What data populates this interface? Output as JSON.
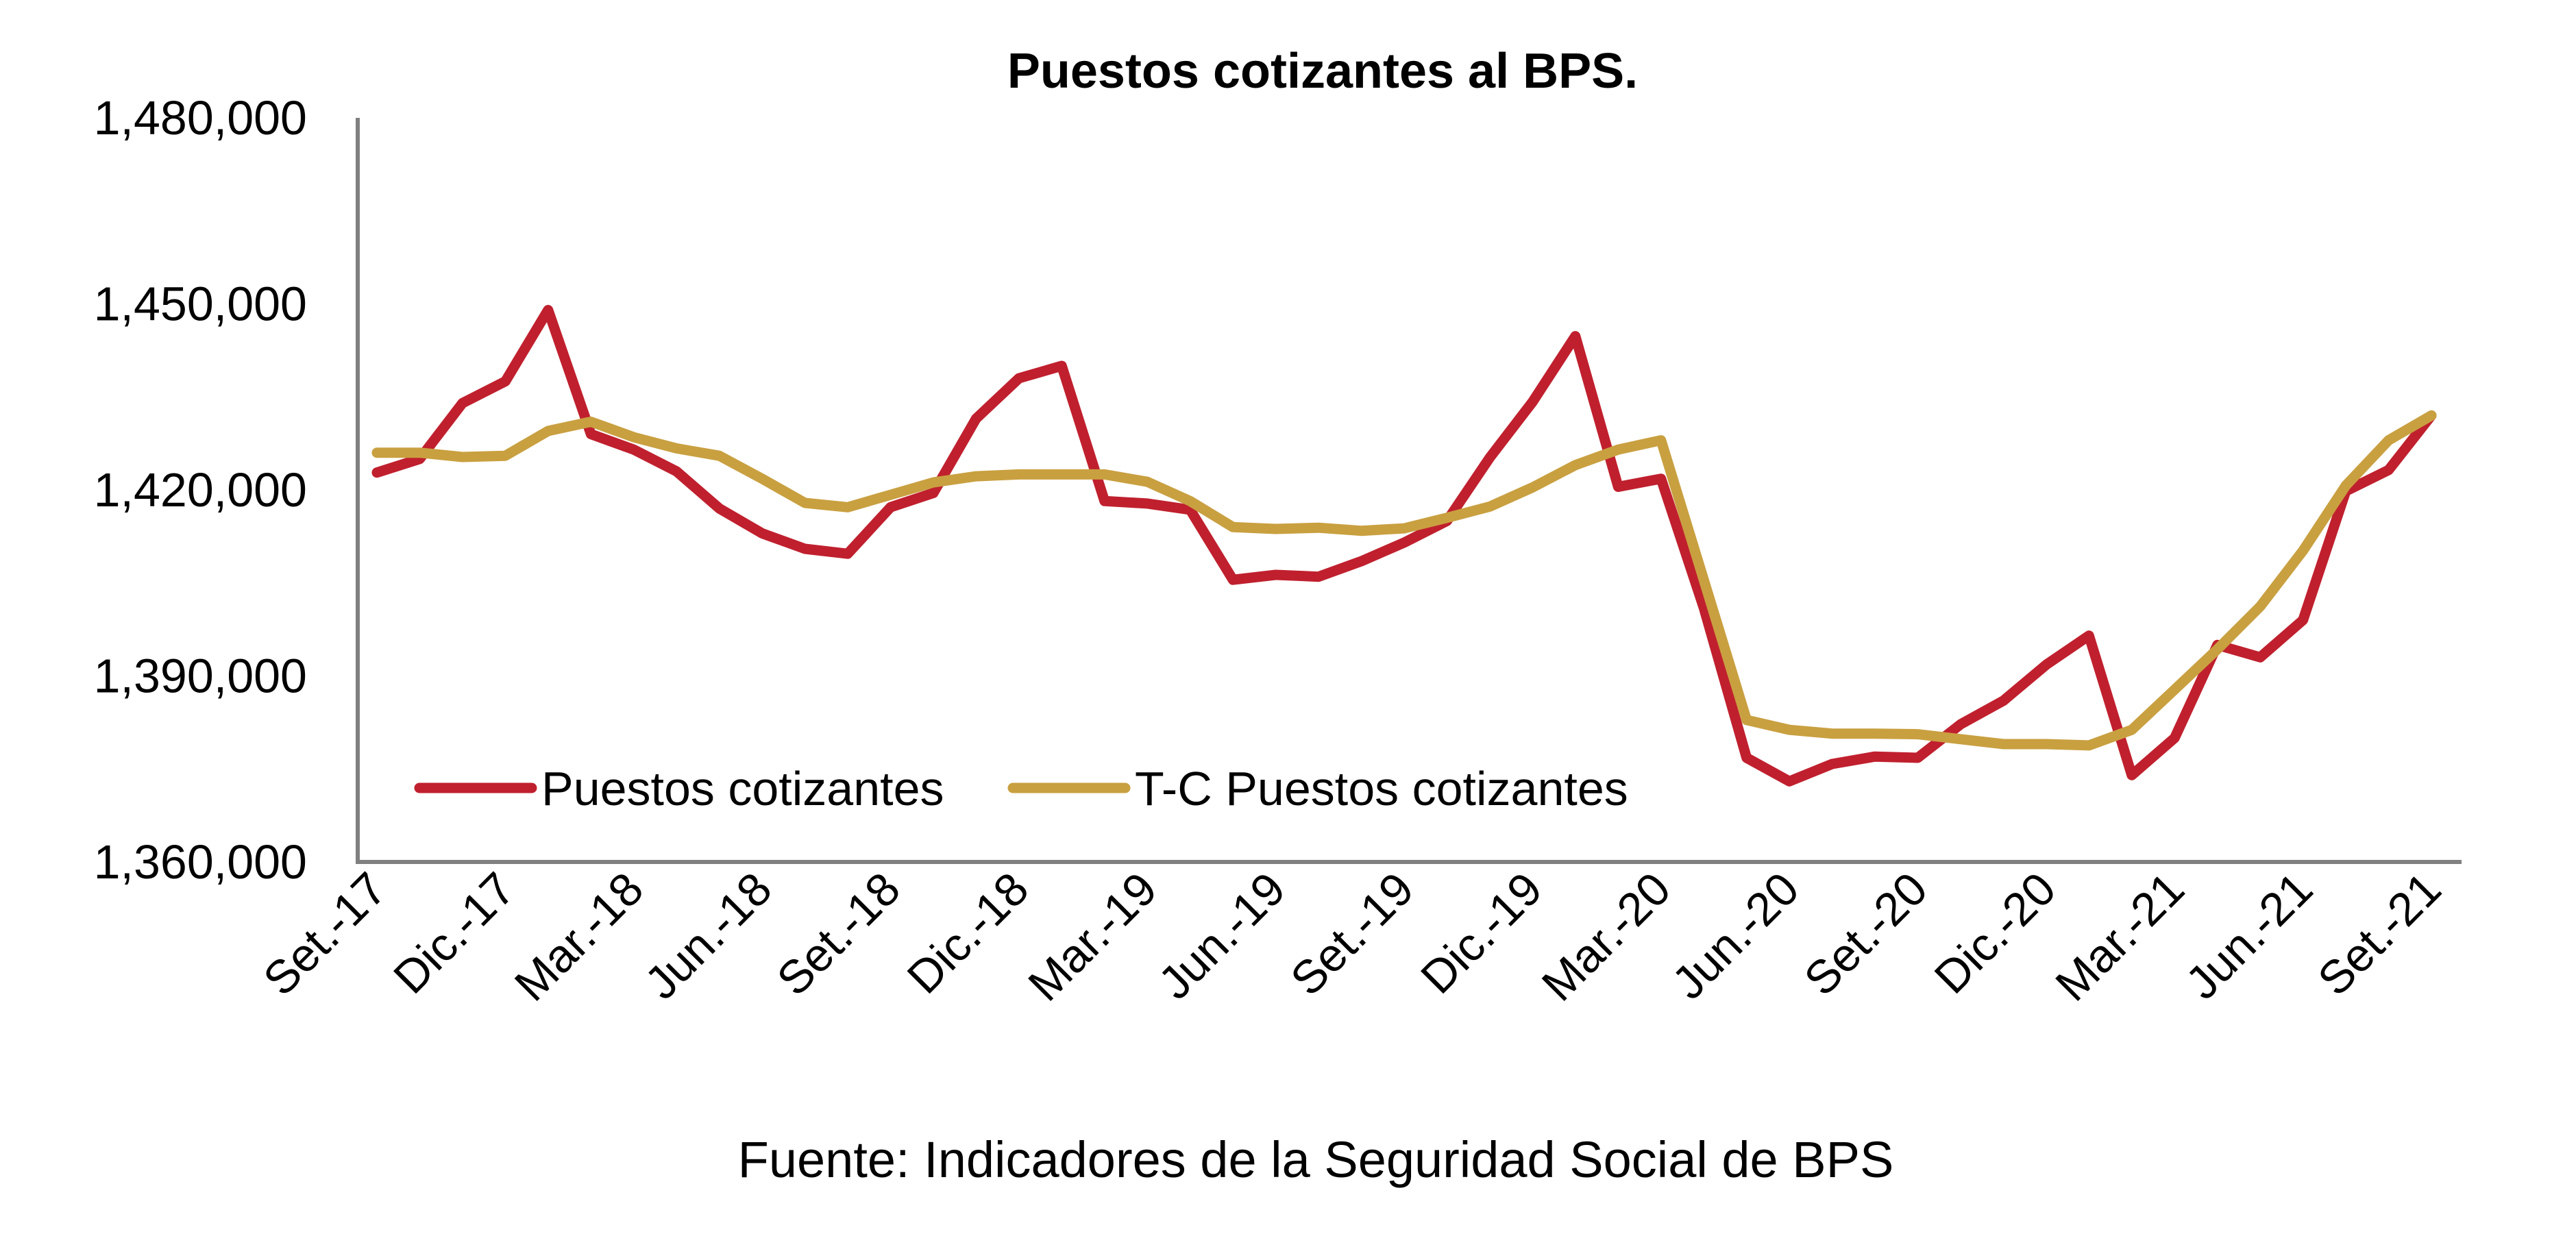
{
  "chart_data": {
    "type": "line",
    "title": "Puestos cotizantes al BPS.",
    "source": "Fuente: Indicadores de la Seguridad Social de BPS",
    "xlabel": "",
    "ylabel": "",
    "ylim": [
      1360000,
      1480000
    ],
    "yticks": [
      1360000,
      1390000,
      1420000,
      1450000,
      1480000
    ],
    "ytick_labels": [
      "1,360,000",
      "1,390,000",
      "1,420,000",
      "1,450,000",
      "1,480,000"
    ],
    "x_tick_labels": [
      "Set.-17",
      "Dic.-17",
      "Mar.-18",
      "Jun.-18",
      "Set.-18",
      "Dic.-18",
      "Mar.-19",
      "Jun.-19",
      "Set.-19",
      "Dic.-19",
      "Mar.-20",
      "Jun.-20",
      "Set.-20",
      "Dic.-20",
      "Mar.-21",
      "Jun.-21",
      "Set.-21"
    ],
    "x": [
      "Set.-17",
      "Oct.-17",
      "Nov.-17",
      "Dic.-17",
      "Ene.-18",
      "Feb.-18",
      "Mar.-18",
      "Abr.-18",
      "May.-18",
      "Jun.-18",
      "Jul.-18",
      "Ago.-18",
      "Set.-18",
      "Oct.-18",
      "Nov.-18",
      "Dic.-18",
      "Ene.-19",
      "Feb.-19",
      "Mar.-19",
      "Abr.-19",
      "May.-19",
      "Jun.-19",
      "Jul.-19",
      "Ago.-19",
      "Set.-19",
      "Oct.-19",
      "Nov.-19",
      "Dic.-19",
      "Ene.-20",
      "Feb.-20",
      "Mar.-20",
      "Abr.-20",
      "May.-20",
      "Jun.-20",
      "Jul.-20",
      "Ago.-20",
      "Set.-20",
      "Oct.-20",
      "Nov.-20",
      "Dic.-20",
      "Ene.-21",
      "Feb.-21",
      "Mar.-21",
      "Abr.-21",
      "May.-21",
      "Jun.-21",
      "Jul.-21",
      "Ago.-21",
      "Set.-21"
    ],
    "series": [
      {
        "name": "Puestos cotizantes",
        "color": "#C0202E",
        "values": [
          1422800,
          1425000,
          1434000,
          1437500,
          1449000,
          1429000,
          1426500,
          1423000,
          1417000,
          1413000,
          1410500,
          1409700,
          1417200,
          1419500,
          1431500,
          1438000,
          1440000,
          1418200,
          1417800,
          1416800,
          1405500,
          1406300,
          1406000,
          1408500,
          1411500,
          1415000,
          1425200,
          1434200,
          1444800,
          1420500,
          1421800,
          1401000,
          1376800,
          1373000,
          1375800,
          1377000,
          1376800,
          1382200,
          1386000,
          1391800,
          1396500,
          1374000,
          1380000,
          1395000,
          1393000,
          1399000,
          1419800,
          1423200,
          1432000
        ]
      },
      {
        "name": "T-C Puestos cotizantes",
        "color": "#C9A040",
        "values": [
          1426000,
          1426000,
          1425300,
          1425500,
          1429500,
          1431000,
          1428500,
          1426700,
          1425500,
          1421800,
          1417900,
          1417200,
          1419200,
          1421200,
          1422200,
          1422500,
          1422500,
          1422500,
          1421300,
          1418200,
          1414000,
          1413700,
          1413900,
          1413400,
          1413800,
          1415500,
          1417300,
          1420400,
          1424000,
          1426500,
          1428000,
          1405500,
          1382900,
          1381300,
          1380700,
          1380700,
          1380600,
          1379800,
          1379000,
          1379000,
          1378800,
          1381300,
          1387800,
          1394300,
          1401200,
          1410200,
          1420700,
          1428000,
          1432000
        ]
      }
    ],
    "legend": {
      "placement": "inside-bottom-left",
      "entries": [
        "Puestos cotizantes",
        "T-C Puestos cotizantes"
      ]
    },
    "grid": false,
    "colors": {
      "axis": "#808080",
      "text": "#000000"
    }
  }
}
